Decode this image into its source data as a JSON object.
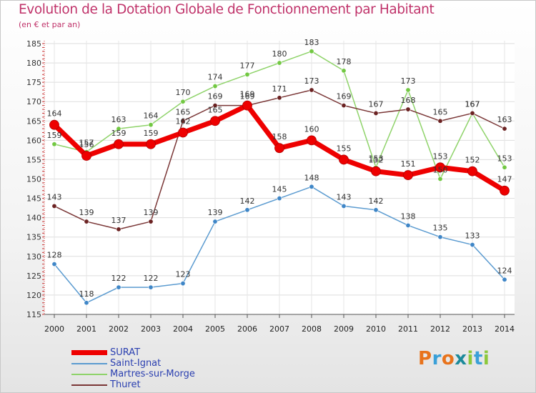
{
  "title": "Evolution de la Dotation Globale de Fonctionnement par Habitant",
  "subtitle": "(en € et par an)",
  "logo": {
    "text": "Proxiti",
    "letters": [
      "P",
      "r",
      "o",
      "x",
      "i",
      "t",
      "i"
    ],
    "colors": [
      "#e8731c",
      "#3aa0d8",
      "#e8731c",
      "#1c8a9a",
      "#8cc83c",
      "#3aa0d8",
      "#8cc83c"
    ]
  },
  "chart_data": {
    "type": "line",
    "title": "Evolution de la Dotation Globale de Fonctionnement par Habitant",
    "subtitle": "(en € et par an)",
    "xlabel": "",
    "ylabel": "",
    "ylim": [
      115,
      185
    ],
    "yticks": [
      115,
      120,
      125,
      130,
      135,
      140,
      145,
      150,
      155,
      160,
      165,
      170,
      175,
      180,
      185
    ],
    "grid": true,
    "legend_position": "bottom-left",
    "categories": [
      "2000",
      "2001",
      "2002",
      "2003",
      "2004",
      "2005",
      "2006",
      "2007",
      "2008",
      "2009",
      "2010",
      "2011",
      "2012",
      "2013",
      "2014"
    ],
    "series": [
      {
        "name": "Saint-Ignat",
        "color": "#5b9bd0",
        "marker": "#3f86c7",
        "values": [
          128,
          118,
          122,
          122,
          123,
          139,
          142,
          145,
          148,
          143,
          142,
          138,
          135,
          133,
          124
        ]
      },
      {
        "name": "Martres-sur-Morge",
        "color": "#8fd36a",
        "marker": "#72c842",
        "values": [
          159,
          157,
          163,
          164,
          170,
          174,
          177,
          180,
          183,
          178,
          153,
          173,
          150,
          167,
          153
        ]
      },
      {
        "name": "Thuret",
        "color": "#7a3636",
        "marker": "#6b2222",
        "values": [
          143,
          139,
          137,
          139,
          165,
          169,
          169,
          171,
          173,
          169,
          167,
          168,
          165,
          167,
          163
        ]
      },
      {
        "name": "SURAT",
        "color": "#ee0000",
        "marker": "#ee0000",
        "bold": true,
        "values": [
          164,
          156,
          159,
          159,
          162,
          165,
          169,
          158,
          160,
          155,
          152,
          151,
          153,
          152,
          147
        ]
      }
    ],
    "legend_order": [
      "SURAT",
      "Saint-Ignat",
      "Martres-sur-Morge",
      "Thuret"
    ]
  }
}
